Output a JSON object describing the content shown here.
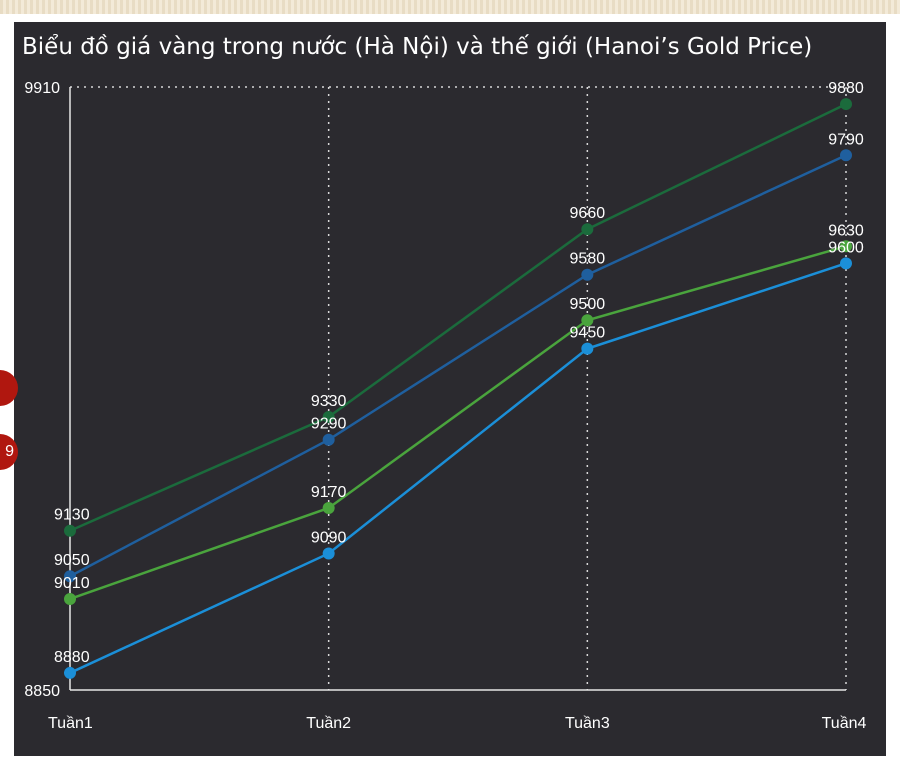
{
  "chart_data": {
    "type": "line",
    "title": "Biểu đồ giá vàng trong nước (Hà Nội) và thế giới (Hanoi’s Gold Price)",
    "xlabel": "",
    "ylabel": "",
    "categories": [
      "Tuần1",
      "Tuần2",
      "Tuần3",
      "Tuần4"
    ],
    "ylim": [
      8850,
      9910
    ],
    "y_ticks": [
      "8850",
      "9910"
    ],
    "grid": "dotted",
    "series": [
      {
        "values": [
          9130,
          9330,
          9660,
          9880
        ],
        "color": "#1b6b3c"
      },
      {
        "values": [
          9050,
          9290,
          9580,
          9790
        ],
        "color": "#1f5f9e"
      },
      {
        "values": [
          9010,
          9170,
          9500,
          9630
        ],
        "color": "#4aa43d"
      },
      {
        "values": [
          8880,
          9090,
          9450,
          9600
        ],
        "color": "#1b8fd8"
      }
    ]
  },
  "side_badges": [
    "",
    "9"
  ]
}
